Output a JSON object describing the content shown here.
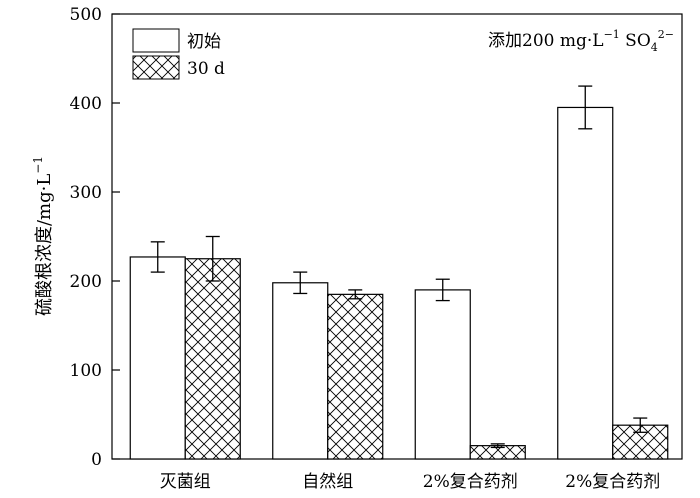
{
  "chart_data": {
    "type": "bar",
    "ylabel": "硫酸根浓度/mg·L",
    "ylabel_sup": "−1",
    "annotation": {
      "prefix": "添加200 mg·L",
      "sup1": "−1",
      "mid": " SO",
      "sub": "4",
      "sup2": "2−"
    },
    "ylim": [
      0,
      500
    ],
    "yticks": [
      0,
      100,
      200,
      300,
      400,
      500
    ],
    "categories": [
      "灭菌组",
      "自然组",
      "2%复合药剂",
      "2%复合药剂"
    ],
    "series": [
      {
        "name": "初始",
        "values": [
          227,
          198,
          190,
          395
        ],
        "errors": [
          17,
          12,
          12,
          24
        ],
        "fill": "none"
      },
      {
        "name": "30 d",
        "values": [
          225,
          185,
          15,
          38
        ],
        "errors": [
          25,
          5,
          2,
          8
        ],
        "fill": "crosshatch"
      }
    ],
    "legend_position": "top-left",
    "grid": false
  },
  "colors": {
    "stroke": "#000000",
    "fill": "#ffffff"
  }
}
